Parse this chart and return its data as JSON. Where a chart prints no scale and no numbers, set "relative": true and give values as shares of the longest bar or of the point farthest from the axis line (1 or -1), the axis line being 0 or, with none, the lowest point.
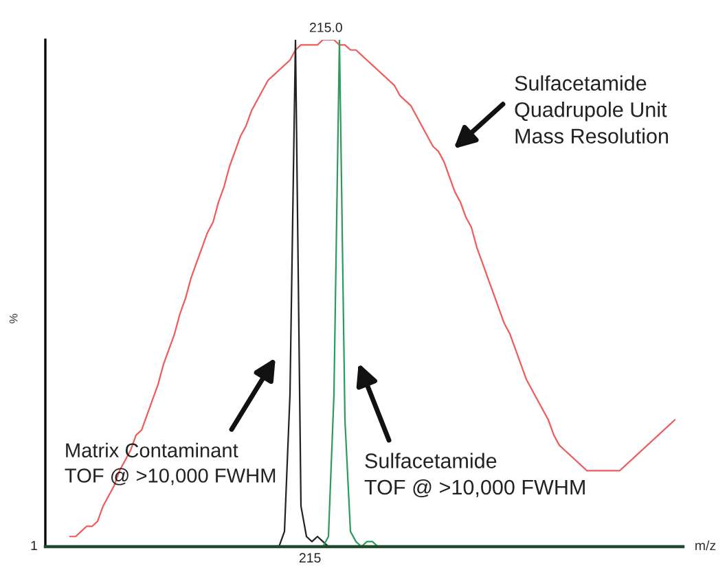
{
  "chart_data": {
    "type": "line",
    "relative": true,
    "xlabel": "m/z",
    "ylabel": "%",
    "legend": false,
    "categories": [
      null,
      null,
      null,
      null,
      null,
      null,
      null,
      null,
      null,
      null,
      null,
      null,
      null,
      null,
      null,
      null,
      null,
      null,
      null,
      null,
      null,
      null,
      null,
      null,
      null,
      null,
      null,
      null,
      null,
      null,
      null,
      null,
      null,
      null,
      null,
      null,
      null,
      null,
      null,
      null,
      null,
      null,
      null,
      null,
      null,
      null,
      null,
      null,
      null,
      null,
      null,
      null,
      null,
      null,
      null,
      null,
      null,
      null,
      null,
      null,
      null,
      null,
      null,
      null,
      null,
      null,
      null,
      null,
      null,
      null,
      null,
      null,
      null,
      null,
      null,
      null,
      null,
      null,
      null,
      null,
      null,
      null,
      null,
      null,
      null,
      null,
      null,
      null,
      null,
      null,
      null,
      null,
      null,
      null,
      null,
      null,
      null,
      null,
      null,
      null,
      null,
      null,
      null,
      null,
      null,
      null,
      null,
      null,
      null,
      null,
      null,
      null,
      null,
      null,
      null,
      null
    ],
    "series": [
      {
        "color": "#f05a5a",
        "values": [
          null,
          null,
          null,
          null,
          0.02,
          0.02,
          0.03,
          0.04,
          0.04,
          0.05,
          0.08,
          0.1,
          0.12,
          0.15,
          0.17,
          0.19,
          0.22,
          0.23,
          0.26,
          0.29,
          0.32,
          0.36,
          0.39,
          0.42,
          0.46,
          0.49,
          0.53,
          0.56,
          0.59,
          0.62,
          0.64,
          0.68,
          0.71,
          0.75,
          0.78,
          0.81,
          0.83,
          0.86,
          0.88,
          0.9,
          0.92,
          0.93,
          0.94,
          0.95,
          0.96,
          0.98,
          0.99,
          0.99,
          0.99,
          0.99,
          1.0,
          1.0,
          1.0,
          0.99,
          0.99,
          0.98,
          0.98,
          0.97,
          0.96,
          0.95,
          0.94,
          0.93,
          0.92,
          0.91,
          0.89,
          0.88,
          0.87,
          0.85,
          0.83,
          0.81,
          0.79,
          0.78,
          0.76,
          0.73,
          0.7,
          0.68,
          0.65,
          0.63,
          0.59,
          0.56,
          0.53,
          0.5,
          0.47,
          0.44,
          0.42,
          0.39,
          0.36,
          0.33,
          0.31,
          0.29,
          0.27,
          0.25,
          0.22,
          0.2,
          0.19,
          0.18,
          0.17,
          0.16,
          0.15,
          0.15,
          0.15,
          0.15,
          0.15,
          0.15,
          0.15,
          0.16,
          0.17,
          0.18,
          0.19,
          0.2,
          0.21,
          0.22,
          0.23,
          0.24,
          0.25,
          null
        ]
      },
      {
        "color": "#222222",
        "values": [
          null,
          null,
          null,
          null,
          null,
          null,
          null,
          null,
          null,
          null,
          null,
          null,
          null,
          null,
          null,
          null,
          null,
          null,
          null,
          null,
          null,
          null,
          null,
          null,
          null,
          null,
          null,
          null,
          null,
          null,
          null,
          null,
          null,
          null,
          null,
          null,
          null,
          null,
          null,
          null,
          0.0,
          0.0,
          0.0,
          0.03,
          0.3,
          1.0,
          0.08,
          0.02,
          0.01,
          0.02,
          0.01,
          0.0,
          0.0,
          null,
          null,
          null,
          null,
          null,
          null,
          null,
          null,
          null,
          null,
          null,
          null,
          null,
          null,
          null,
          null,
          null,
          null,
          null,
          null,
          null,
          null,
          null,
          null,
          null,
          null,
          null,
          null,
          null,
          null,
          null,
          null,
          null,
          null,
          null,
          null,
          null,
          null,
          null,
          null,
          null,
          null,
          null,
          null,
          null,
          null,
          null,
          null,
          null,
          null,
          null,
          null,
          null,
          null,
          null,
          null,
          null,
          null,
          null,
          null,
          null,
          null,
          null
        ]
      },
      {
        "color": "#2e9a5c",
        "values": [
          null,
          null,
          null,
          null,
          null,
          null,
          null,
          null,
          null,
          null,
          null,
          null,
          null,
          null,
          null,
          null,
          null,
          null,
          null,
          null,
          null,
          null,
          null,
          null,
          null,
          null,
          null,
          null,
          null,
          null,
          null,
          null,
          null,
          null,
          null,
          null,
          null,
          null,
          null,
          null,
          null,
          null,
          null,
          null,
          null,
          null,
          null,
          null,
          null,
          0.0,
          0.0,
          0.02,
          0.3,
          1.0,
          0.25,
          0.03,
          0.01,
          0.0,
          0.01,
          0.01,
          0.0,
          null,
          null,
          null,
          null,
          null,
          null,
          null,
          null,
          null,
          null,
          null,
          null,
          null,
          null,
          null,
          null,
          null,
          null,
          null,
          null,
          null,
          null,
          null,
          null,
          null,
          null,
          null,
          null,
          null,
          null,
          null,
          null,
          null,
          null,
          null,
          null,
          null,
          null,
          null,
          null,
          null,
          null,
          null,
          null,
          null,
          null,
          null,
          null,
          null,
          null,
          null,
          null,
          null,
          null,
          null
        ]
      }
    ],
    "annotations": [
      "215.0",
      "215",
      "1",
      "Sulfacetamide\nQuadrupole Unit\nMass Resolution",
      "Matrix Contaminant\nTOF @ >10,000 FWHM",
      "Sulfacetamide\nTOF @ >10,000 FWHM"
    ]
  }
}
